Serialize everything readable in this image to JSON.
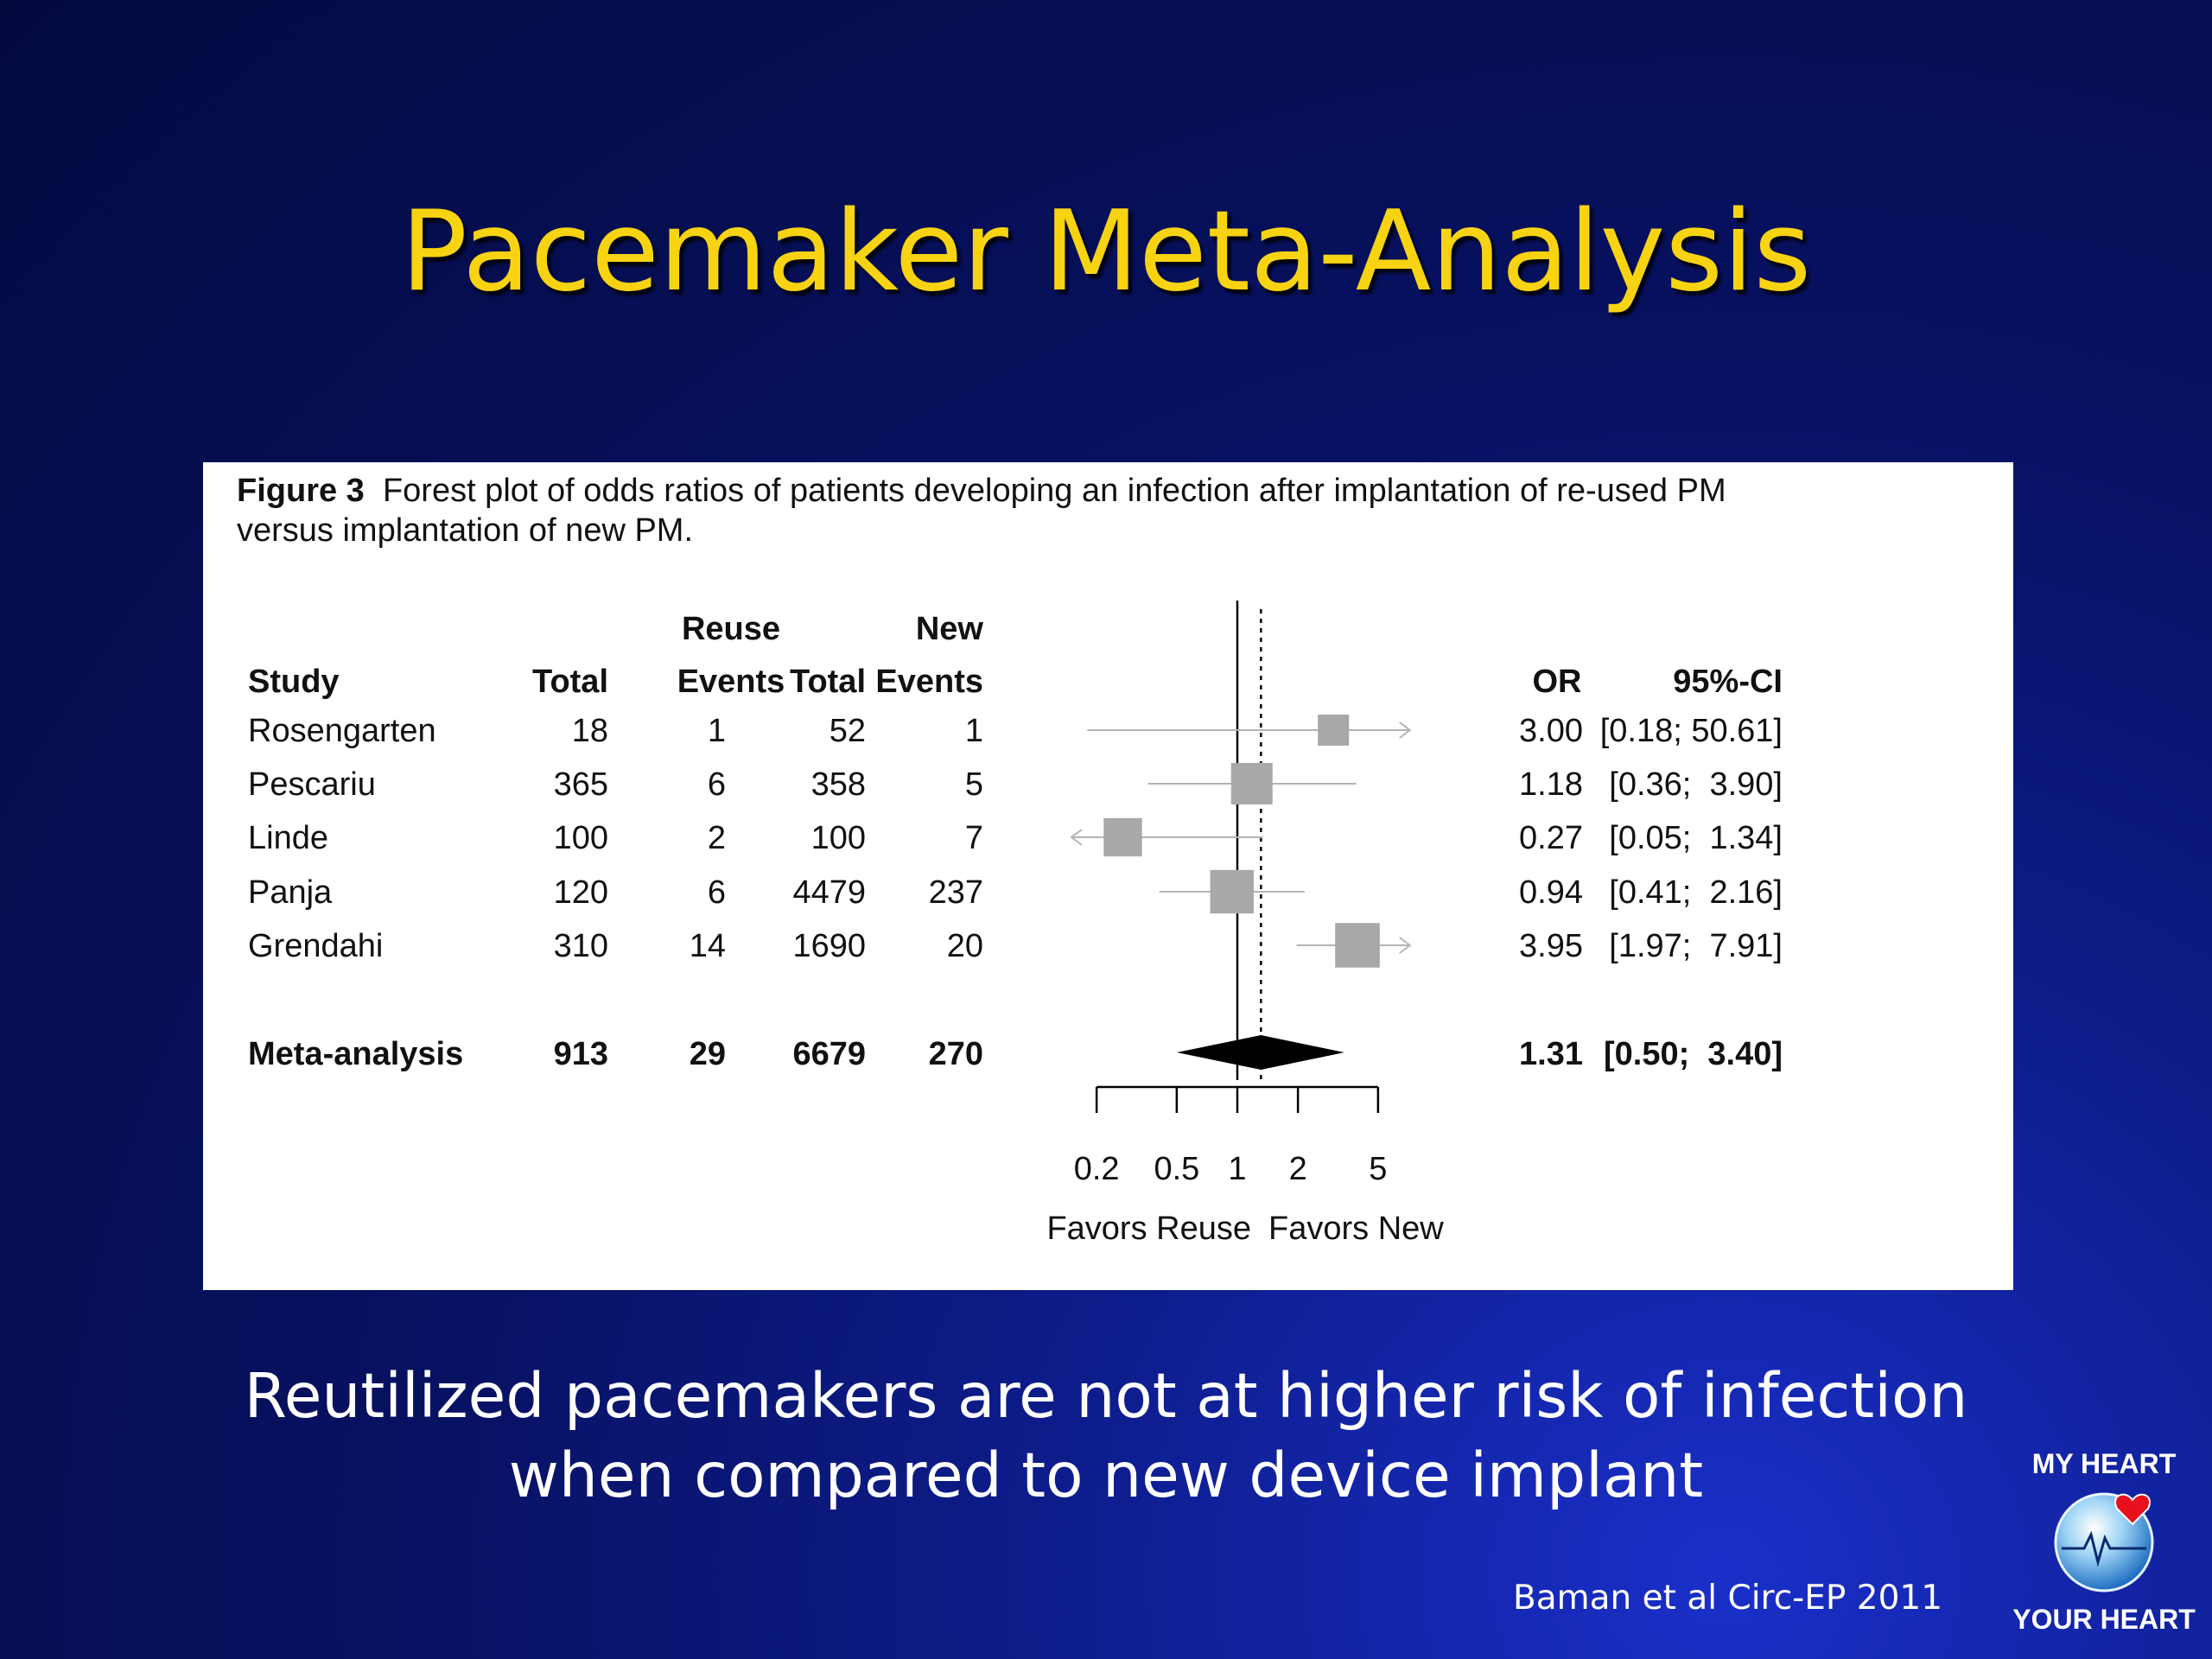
{
  "slide": {
    "title": "Pacemaker Meta-Analysis",
    "conclusion_line1": "Reutilized pacemakers are not at higher risk of infection",
    "conclusion_line2": "when compared to new device implant",
    "citation": "Baman et al Circ-EP 2011",
    "logo_top": "MY HEART",
    "logo_bottom": "YOUR HEART"
  },
  "figure": {
    "label": "Figure 3",
    "caption_line1": "Forest plot of odds ratios of patients developing an infection after implantation of re-used PM",
    "caption_line2": "versus implantation of new PM."
  },
  "colors": {
    "title": "#f7d312",
    "marker": "#a8a8a8",
    "whisker": "#b4b4b4",
    "diamond": "#000000"
  },
  "chart_data": {
    "type": "forest",
    "x_scale": "log",
    "xlim": [
      0.15,
      7.2
    ],
    "null_line": 1,
    "pooled_line": 1.31,
    "xticks": [
      0.2,
      0.5,
      1,
      2,
      5
    ],
    "xtick_labels": [
      "0.2",
      "0.5",
      "1",
      "2",
      "5"
    ],
    "favors_left": "Favors Reuse",
    "favors_right": "Favors New",
    "group_headers": [
      "Reuse",
      "New"
    ],
    "columns": [
      "Study",
      "Total",
      "Events",
      "Total",
      "Events",
      "OR",
      "95%-CI"
    ],
    "studies": [
      {
        "study": "Rosengarten",
        "reuse_total": "18",
        "reuse_events": "1",
        "new_total": "52",
        "new_events": "1",
        "or": 3.0,
        "lo": 0.18,
        "hi": 50.61,
        "or_text": "3.00",
        "ci_text": "[0.18; 50.61]",
        "weight": 0.5
      },
      {
        "study": "Pescariu",
        "reuse_total": "365",
        "reuse_events": "6",
        "new_total": "358",
        "new_events": "5",
        "or": 1.18,
        "lo": 0.36,
        "hi": 3.9,
        "or_text": "1.18",
        "ci_text": "[0.36;  3.90]",
        "weight": 1.0
      },
      {
        "study": "Linde",
        "reuse_total": "100",
        "reuse_events": "2",
        "new_total": "100",
        "new_events": "7",
        "or": 0.27,
        "lo": 0.05,
        "hi": 1.34,
        "or_text": "0.27",
        "ci_text": "[0.05;  1.34]",
        "weight": 0.85
      },
      {
        "study": "Panja",
        "reuse_total": "120",
        "reuse_events": "6",
        "new_total": "4479",
        "new_events": "237",
        "or": 0.94,
        "lo": 0.41,
        "hi": 2.16,
        "or_text": "0.94",
        "ci_text": "[0.41;  2.16]",
        "weight": 1.1
      },
      {
        "study": "Grendahi",
        "reuse_total": "310",
        "reuse_events": "14",
        "new_total": "1690",
        "new_events": "20",
        "or": 3.95,
        "lo": 1.97,
        "hi": 7.91,
        "or_text": "3.95",
        "ci_text": "[1.97;  7.91]",
        "weight": 1.15
      }
    ],
    "summary": {
      "study": "Meta-analysis",
      "reuse_total": "913",
      "reuse_events": "29",
      "new_total": "6679",
      "new_events": "270",
      "or": 1.31,
      "lo": 0.5,
      "hi": 3.4,
      "or_text": "1.31",
      "ci_text": "[0.50;  3.40]"
    }
  }
}
